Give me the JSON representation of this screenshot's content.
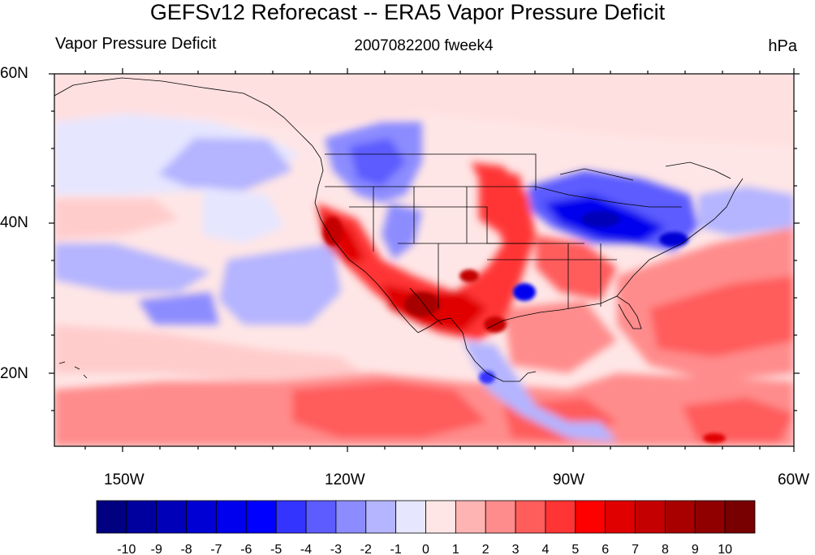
{
  "title": "GEFSv12 Reforecast -- ERA5 Vapor Pressure Deficit",
  "subtitle_left": "Vapor Pressure Deficit",
  "subtitle_center": "2007082200 fweek4",
  "subtitle_right": "hPa",
  "lat_labels": [
    "60N",
    "40N",
    "20N"
  ],
  "lon_labels": [
    "150W",
    "120W",
    "90W",
    "60W"
  ],
  "colorbar": {
    "ticks": [
      "-10",
      "-9",
      "-8",
      "-7",
      "-6",
      "-5",
      "-4",
      "-3",
      "-2",
      "-1",
      "0",
      "1",
      "2",
      "3",
      "4",
      "5",
      "6",
      "7",
      "8",
      "9",
      "10"
    ],
    "colors": [
      "#000080",
      "#00009e",
      "#0000b8",
      "#0000d4",
      "#0000ee",
      "#0000ff",
      "#3434ff",
      "#5c5cff",
      "#8c8cff",
      "#b4b4ff",
      "#e6e6ff",
      "#ffe6e6",
      "#ffb4b4",
      "#ff8c8c",
      "#ff5c5c",
      "#ff3434",
      "#ff0000",
      "#e00000",
      "#c40000",
      "#a80000",
      "#900000",
      "#780000"
    ]
  }
}
